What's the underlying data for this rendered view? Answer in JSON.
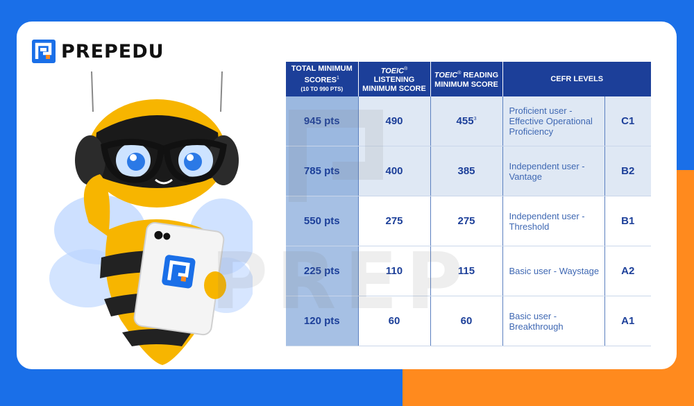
{
  "brand": {
    "name": "PREPEDU",
    "watermark": "PREP",
    "primary_color": "#1a6fe8",
    "accent_color": "#ff8a1e",
    "logo_icon": "prep-logo-icon"
  },
  "illustration": {
    "name": "bee-mascot-holding-phone"
  },
  "table": {
    "headers": {
      "total": "TOTAL MINIMUM SCORES",
      "total_sup": "1",
      "total_range": "(10 TO 990 PTS)",
      "listening_brand": "TOEIC",
      "listening_rest": "LISTENING MINIMUM SCORE",
      "reading_brand": "TOEIC",
      "reading_rest": "READING MINIMUM SCORE",
      "registered": "®",
      "cefr": "CEFR LEVELS"
    },
    "rows": [
      {
        "total": "945 pts",
        "listening": "490",
        "reading": "455",
        "reading_sup": "3",
        "description": "Proficient user - Effective Operational Proficiency",
        "level": "C1"
      },
      {
        "total": "785 pts",
        "listening": "400",
        "reading": "385",
        "reading_sup": "",
        "description": "Independent user - Vantage",
        "level": "B2"
      },
      {
        "total": "550 pts",
        "listening": "275",
        "reading": "275",
        "reading_sup": "",
        "description": "Independent user - Threshold",
        "level": "B1"
      },
      {
        "total": "225 pts",
        "listening": "110",
        "reading": "115",
        "reading_sup": "",
        "description": "Basic user - Waystage",
        "level": "A2"
      },
      {
        "total": "120 pts",
        "listening": "60",
        "reading": "60",
        "reading_sup": "",
        "description": "Basic user - Breakthrough",
        "level": "A1"
      }
    ]
  }
}
